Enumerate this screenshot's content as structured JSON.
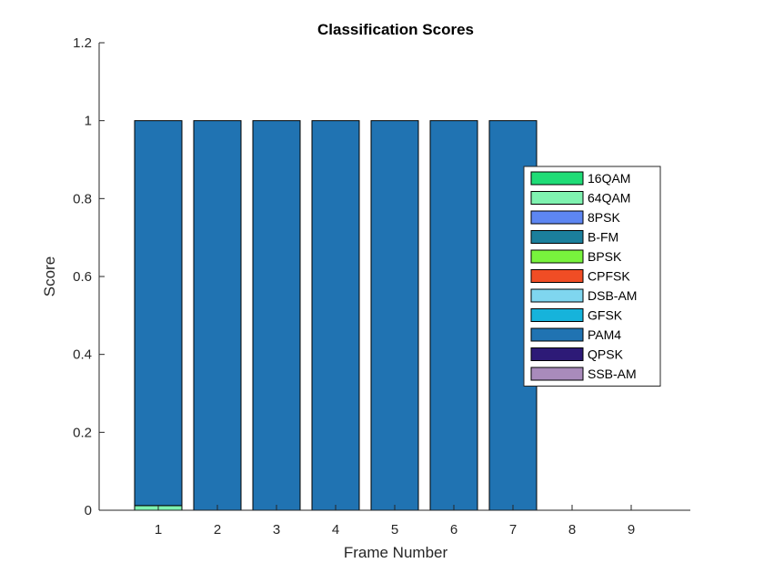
{
  "chart_data": {
    "type": "bar",
    "stacked": true,
    "title": "Classification Scores",
    "xlabel": "Frame Number",
    "ylabel": "Score",
    "ylim": [
      0,
      1.2
    ],
    "xlim": [
      0,
      10
    ],
    "yticks": [
      0,
      0.2,
      0.4,
      0.6,
      0.8,
      1,
      1.2
    ],
    "ytick_labels": [
      "0",
      "0.2",
      "0.4",
      "0.6",
      "0.8",
      "1",
      "1.2"
    ],
    "categories": [
      "1",
      "2",
      "3",
      "4",
      "5",
      "6",
      "7",
      "8",
      "9"
    ],
    "legend_position": "right",
    "series": [
      {
        "name": "16QAM",
        "color": "#1fdc76",
        "values": [
          0,
          0,
          0,
          0,
          0,
          0,
          0,
          0,
          0
        ]
      },
      {
        "name": "64QAM",
        "color": "#7ff2b0",
        "values": [
          0.012,
          0,
          0,
          0,
          0,
          0,
          0,
          0,
          0
        ]
      },
      {
        "name": "8PSK",
        "color": "#5d86f2",
        "values": [
          0,
          0,
          0,
          0,
          0,
          0,
          0,
          0,
          0
        ]
      },
      {
        "name": "B-FM",
        "color": "#1b7f9c",
        "values": [
          0,
          0,
          0,
          0,
          0,
          0,
          0,
          0,
          0
        ]
      },
      {
        "name": "BPSK",
        "color": "#78f33d",
        "values": [
          0,
          0,
          0,
          0,
          0,
          0,
          0,
          0,
          0
        ]
      },
      {
        "name": "CPFSK",
        "color": "#f04d25",
        "values": [
          0,
          0,
          0,
          0,
          0,
          0,
          0,
          0,
          0
        ]
      },
      {
        "name": "DSB-AM",
        "color": "#7fd6ef",
        "values": [
          0,
          0,
          0,
          0,
          0,
          0,
          0,
          0,
          0
        ]
      },
      {
        "name": "GFSK",
        "color": "#16b3db",
        "values": [
          0,
          0,
          0,
          0,
          0,
          0,
          0,
          0,
          0
        ]
      },
      {
        "name": "PAM4",
        "color": "#2073b2",
        "values": [
          0.988,
          1,
          1,
          1,
          1,
          1,
          1,
          0,
          0
        ]
      },
      {
        "name": "QPSK",
        "color": "#2d1a77",
        "values": [
          0,
          0,
          0,
          0,
          0,
          0,
          0,
          0,
          0
        ]
      },
      {
        "name": "SSB-AM",
        "color": "#a98bbb",
        "values": [
          0,
          0,
          0,
          0,
          0,
          0,
          0,
          0,
          0
        ]
      }
    ]
  }
}
